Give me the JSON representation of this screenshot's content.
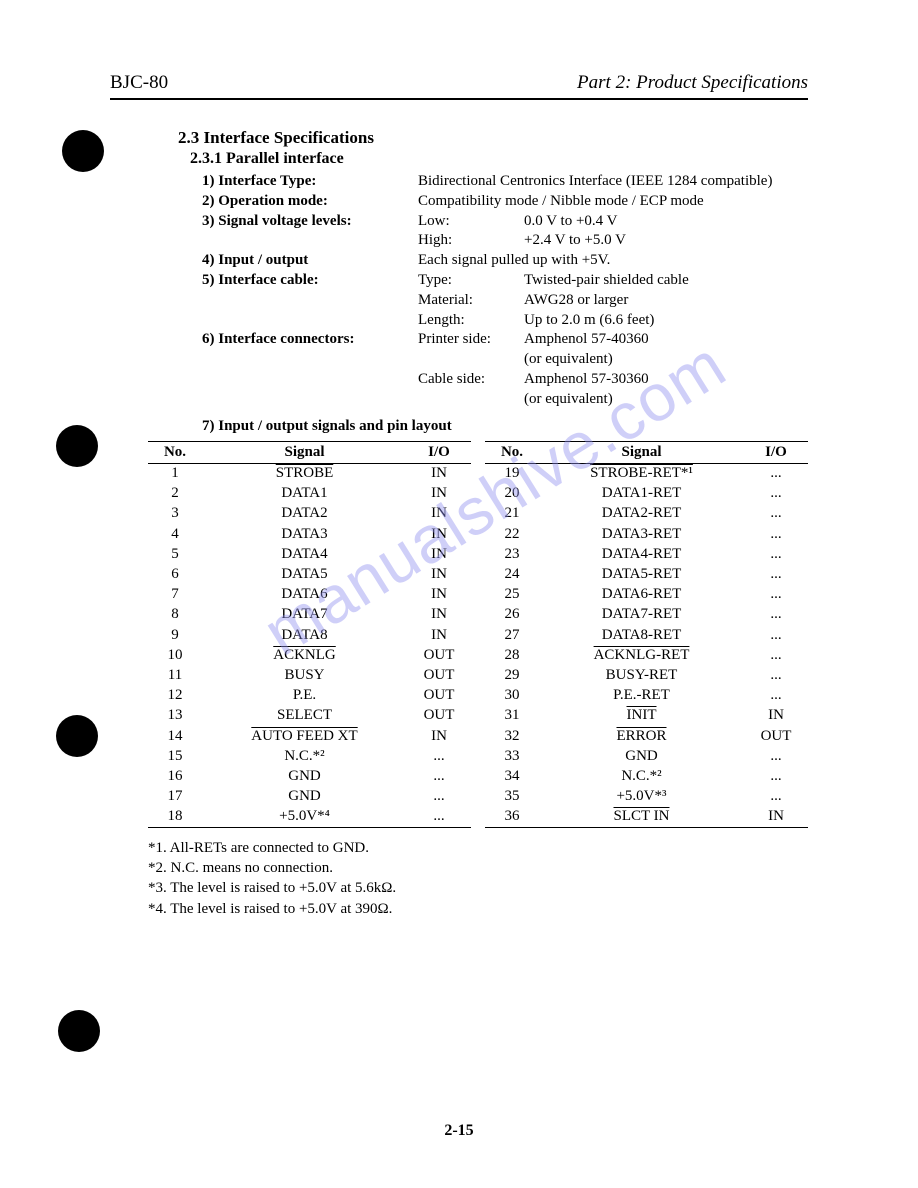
{
  "header": {
    "left": "BJC-80",
    "right": "Part 2: Product Specifications"
  },
  "section": {
    "title": "2.3 Interface Specifications",
    "subtitle": "2.3.1 Parallel interface"
  },
  "specs": {
    "r1_label": "1) Interface Type:",
    "r1_val": "Bidirectional Centronics Interface (IEEE 1284 compatible)",
    "r2_label": "2) Operation mode:",
    "r2_val": "Compatibility mode / Nibble mode / ECP mode",
    "r3_label": "3) Signal voltage levels:",
    "r3_low_k": "Low:",
    "r3_low_v": "0.0 V to +0.4 V",
    "r3_high_k": "High:",
    "r3_high_v": "+2.4 V to +5.0 V",
    "r4_label": "4) Input / output",
    "r4_val": "Each signal pulled up with +5V.",
    "r5_label": "5) Interface cable:",
    "r5_type_k": "Type:",
    "r5_type_v": "Twisted-pair shielded cable",
    "r5_mat_k": "Material:",
    "r5_mat_v": "AWG28 or larger",
    "r5_len_k": "Length:",
    "r5_len_v": "Up to 2.0 m (6.6 feet)",
    "r6_label": "6) Interface connectors:",
    "r6_ps_k": "Printer side:",
    "r6_ps_v": "Amphenol 57-40360",
    "r6_ps_v2": "(or equivalent)",
    "r6_cs_k": "Cable side:",
    "r6_cs_v": "Amphenol 57-30360",
    "r6_cs_v2": "(or equivalent)",
    "r7_label": "7) Input / output signals and pin layout"
  },
  "table": {
    "headers": {
      "no": "No.",
      "signal": "Signal",
      "io": "I/O"
    },
    "left": [
      {
        "no": "1",
        "sig": "STROBE",
        "ov": true,
        "io": "IN"
      },
      {
        "no": "2",
        "sig": "DATA1",
        "io": "IN"
      },
      {
        "no": "3",
        "sig": "DATA2",
        "io": "IN"
      },
      {
        "no": "4",
        "sig": "DATA3",
        "io": "IN"
      },
      {
        "no": "5",
        "sig": "DATA4",
        "io": "IN"
      },
      {
        "no": "6",
        "sig": "DATA5",
        "io": "IN"
      },
      {
        "no": "7",
        "sig": "DATA6",
        "io": "IN"
      },
      {
        "no": "8",
        "sig": "DATA7",
        "io": "IN"
      },
      {
        "no": "9",
        "sig": "DATA8",
        "io": "IN"
      },
      {
        "no": "10",
        "sig": "ACKNLG",
        "ov": true,
        "io": "OUT"
      },
      {
        "no": "11",
        "sig": "BUSY",
        "io": "OUT"
      },
      {
        "no": "12",
        "sig": "P.E.",
        "io": "OUT"
      },
      {
        "no": "13",
        "sig": "SELECT",
        "io": "OUT"
      },
      {
        "no": "14",
        "sig": "AUTO FEED XT",
        "ov": true,
        "io": "IN"
      },
      {
        "no": "15",
        "sig": "N.C.*²",
        "io": "..."
      },
      {
        "no": "16",
        "sig": "GND",
        "io": "..."
      },
      {
        "no": "17",
        "sig": "GND",
        "io": "..."
      },
      {
        "no": "18",
        "sig": "+5.0V*⁴",
        "io": "..."
      }
    ],
    "right": [
      {
        "no": "19",
        "sig": "STROBE-RET*¹",
        "ov": true,
        "io": "..."
      },
      {
        "no": "20",
        "sig": "DATA1-RET",
        "io": "..."
      },
      {
        "no": "21",
        "sig": "DATA2-RET",
        "io": "..."
      },
      {
        "no": "22",
        "sig": "DATA3-RET",
        "io": "..."
      },
      {
        "no": "23",
        "sig": "DATA4-RET",
        "io": "..."
      },
      {
        "no": "24",
        "sig": "DATA5-RET",
        "io": "..."
      },
      {
        "no": "25",
        "sig": "DATA6-RET",
        "io": "..."
      },
      {
        "no": "26",
        "sig": "DATA7-RET",
        "io": "..."
      },
      {
        "no": "27",
        "sig": "DATA8-RET",
        "io": "..."
      },
      {
        "no": "28",
        "sig": "ACKNLG-RET",
        "ov": true,
        "io": "..."
      },
      {
        "no": "29",
        "sig": "BUSY-RET",
        "io": "..."
      },
      {
        "no": "30",
        "sig": "P.E.-RET",
        "io": "..."
      },
      {
        "no": "31",
        "sig": "INIT",
        "ov": true,
        "io": "IN"
      },
      {
        "no": "32",
        "sig": "ERROR",
        "ov": true,
        "io": "OUT"
      },
      {
        "no": "33",
        "sig": "GND",
        "io": "..."
      },
      {
        "no": "34",
        "sig": "N.C.*²",
        "io": "..."
      },
      {
        "no": "35",
        "sig": "+5.0V*³",
        "io": "..."
      },
      {
        "no": "36",
        "sig": "SLCT IN",
        "ov": true,
        "io": "IN"
      }
    ]
  },
  "notes": {
    "n1": "*1. All-RETs are connected to GND.",
    "n2": "*2. N.C. means no connection.",
    "n3": "*3. The level is raised to +5.0V at 5.6kΩ.",
    "n4": "*4. The level is raised to +5.0V at 390Ω."
  },
  "page_number": "2-15",
  "watermark": "manualshive.com",
  "colors": {
    "text": "#000000",
    "bg": "#ffffff",
    "watermark": "#8f8fef"
  }
}
